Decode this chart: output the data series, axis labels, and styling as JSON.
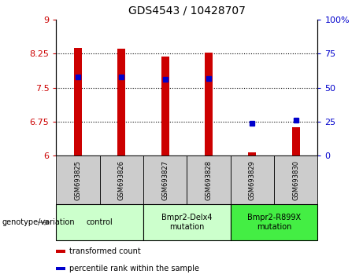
{
  "title": "GDS4543 / 10428707",
  "samples": [
    "GSM693825",
    "GSM693826",
    "GSM693827",
    "GSM693828",
    "GSM693829",
    "GSM693830"
  ],
  "bar_values": [
    8.38,
    8.35,
    8.19,
    8.27,
    6.08,
    6.62
  ],
  "percentile_values": [
    7.73,
    7.73,
    7.68,
    7.7,
    6.71,
    6.79
  ],
  "ylim_left": [
    6.0,
    9.0
  ],
  "ylim_right": [
    0,
    100
  ],
  "yticks_left": [
    6.0,
    6.75,
    7.5,
    8.25,
    9.0
  ],
  "yticks_right": [
    0,
    25,
    50,
    75,
    100
  ],
  "ytick_labels_left": [
    "6",
    "6.75",
    "7.5",
    "8.25",
    "9"
  ],
  "ytick_labels_right": [
    "0",
    "25",
    "50",
    "75",
    "100%"
  ],
  "hlines": [
    6.75,
    7.5,
    8.25
  ],
  "bar_color": "#cc0000",
  "percentile_color": "#0000cc",
  "bar_bottom": 6.0,
  "groups": [
    {
      "label": "control",
      "samples": [
        0,
        1
      ],
      "color": "#ccffcc"
    },
    {
      "label": "Bmpr2-Delx4\nmutation",
      "samples": [
        2,
        3
      ],
      "color": "#ccffcc"
    },
    {
      "label": "Bmpr2-R899X\nmutation",
      "samples": [
        4,
        5
      ],
      "color": "#44ee44"
    }
  ],
  "group_header": "genotype/variation",
  "legend_items": [
    {
      "color": "#cc0000",
      "label": "transformed count"
    },
    {
      "color": "#0000cc",
      "label": "percentile rank within the sample"
    }
  ],
  "plot_bg_color": "#ffffff",
  "tick_label_color_left": "#cc0000",
  "tick_label_color_right": "#0000cc",
  "bar_width": 0.18,
  "sample_bg_color": "#cccccc"
}
